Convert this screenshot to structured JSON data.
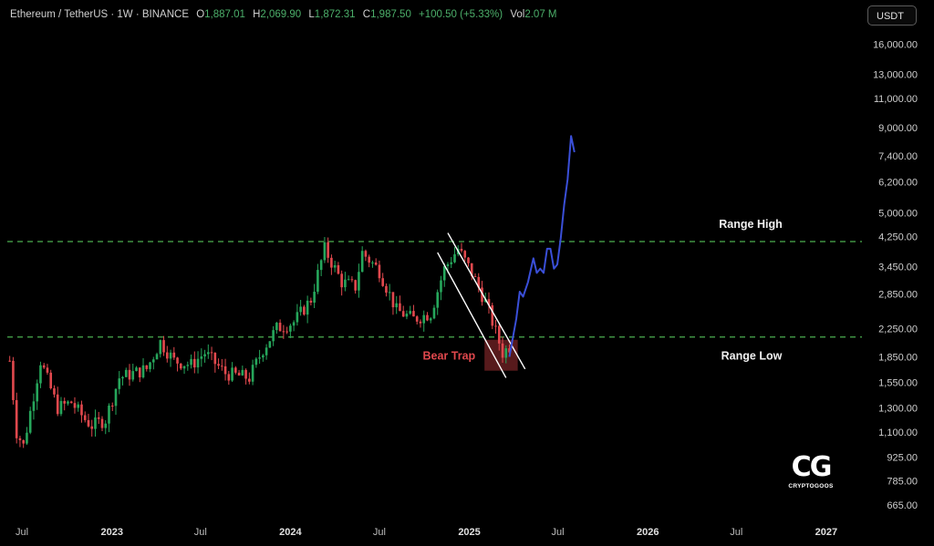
{
  "legend": {
    "symbol": "Ethereum / TetherUS · 1W · BINANCE",
    "o_label": "O",
    "o_value": "1,887.01",
    "h_label": "H",
    "h_value": "2,069.90",
    "l_label": "L",
    "l_value": "1,872.31",
    "c_label": "C",
    "c_value": "1,987.50",
    "change": "+100.50 (+5.33%)",
    "vol_label": "Vol",
    "vol_value": "2.07 M"
  },
  "currency_button": "USDT",
  "logo": {
    "mark": "CG",
    "text": "CRYPTOGOOS"
  },
  "colors": {
    "up": "#26a65b",
    "down": "#e0484d",
    "projection": "#3a4fd8",
    "range_lines": "#4caf50",
    "bear_trap": "#c0393d"
  },
  "chart_data": {
    "type": "candlestick",
    "scale": "log",
    "ylim": [
      620,
      18000
    ],
    "y_ticks": [
      16000,
      13000,
      11000,
      9000,
      7400,
      6200,
      5000,
      4250,
      3450,
      2850,
      2250,
      1850,
      1550,
      1300,
      1100,
      925,
      785,
      665
    ],
    "y_tick_labels": [
      "16,000.00",
      "13,000.00",
      "11,000.00",
      "9,000.00",
      "7,400.00",
      "6,200.00",
      "5,000.00",
      "4,250.00",
      "3,450.00",
      "2,850.00",
      "2,250.00",
      "1,850.00",
      "1,550.00",
      "1,300.00",
      "1,100.00",
      "925.00",
      "785.00",
      "665.00"
    ],
    "x_ticks": [
      {
        "date": "2022-07-01",
        "label": "Jul",
        "bold": false
      },
      {
        "date": "2023-01-01",
        "label": "2023",
        "bold": true
      },
      {
        "date": "2023-07-01",
        "label": "Jul",
        "bold": false
      },
      {
        "date": "2024-01-01",
        "label": "2024",
        "bold": true
      },
      {
        "date": "2024-07-01",
        "label": "Jul",
        "bold": false
      },
      {
        "date": "2025-01-01",
        "label": "2025",
        "bold": true
      },
      {
        "date": "2025-07-01",
        "label": "Jul",
        "bold": false
      },
      {
        "date": "2026-01-01",
        "label": "2026",
        "bold": true
      },
      {
        "date": "2026-07-01",
        "label": "Jul",
        "bold": false
      },
      {
        "date": "2027-01-01",
        "label": "2027",
        "bold": true
      }
    ],
    "xlim": [
      "2022-06-01",
      "2027-03-15"
    ],
    "range_high": {
      "value": 4100,
      "label": "Range High"
    },
    "range_low": {
      "value": 2120,
      "label": "Range Low"
    },
    "bear_trap": {
      "label": "Bear Trap",
      "x0": "2025-02-01",
      "x1": "2025-04-10",
      "y0": 1680,
      "y1": 2080
    },
    "channel": [
      {
        "x0": "2024-11-18",
        "y0": 4350,
        "x1": "2025-04-25",
        "y1": 1700
      },
      {
        "x0": "2024-10-28",
        "y0": 3800,
        "x1": "2025-03-17",
        "y1": 1600
      }
    ],
    "projection": [
      {
        "x": "2025-03-24",
        "y": 1850
      },
      {
        "x": "2025-04-07",
        "y": 2400
      },
      {
        "x": "2025-04-14",
        "y": 2900
      },
      {
        "x": "2025-04-21",
        "y": 2800
      },
      {
        "x": "2025-05-01",
        "y": 3100
      },
      {
        "x": "2025-05-12",
        "y": 3650
      },
      {
        "x": "2025-05-19",
        "y": 3300
      },
      {
        "x": "2025-05-26",
        "y": 3400
      },
      {
        "x": "2025-06-02",
        "y": 3300
      },
      {
        "x": "2025-06-09",
        "y": 3900
      },
      {
        "x": "2025-06-16",
        "y": 3900
      },
      {
        "x": "2025-06-23",
        "y": 3400
      },
      {
        "x": "2025-06-30",
        "y": 3500
      },
      {
        "x": "2025-07-07",
        "y": 4200
      },
      {
        "x": "2025-07-14",
        "y": 5300
      },
      {
        "x": "2025-07-21",
        "y": 6300
      },
      {
        "x": "2025-07-28",
        "y": 8500
      },
      {
        "x": "2025-08-04",
        "y": 7600
      }
    ],
    "price_path": [
      {
        "date": "2022-06-06",
        "price": 1800
      },
      {
        "date": "2022-06-20",
        "price": 1100
      },
      {
        "date": "2022-07-04",
        "price": 1000
      },
      {
        "date": "2022-08-08",
        "price": 1800
      },
      {
        "date": "2022-09-12",
        "price": 1300
      },
      {
        "date": "2022-10-10",
        "price": 1350
      },
      {
        "date": "2022-11-07",
        "price": 1200
      },
      {
        "date": "2022-11-21",
        "price": 1150
      },
      {
        "date": "2022-12-19",
        "price": 1200
      },
      {
        "date": "2023-01-16",
        "price": 1600
      },
      {
        "date": "2023-03-13",
        "price": 1700
      },
      {
        "date": "2023-04-10",
        "price": 2050
      },
      {
        "date": "2023-05-08",
        "price": 1800
      },
      {
        "date": "2023-06-12",
        "price": 1750
      },
      {
        "date": "2023-07-10",
        "price": 1900
      },
      {
        "date": "2023-08-21",
        "price": 1650
      },
      {
        "date": "2023-10-09",
        "price": 1600
      },
      {
        "date": "2023-11-06",
        "price": 1950
      },
      {
        "date": "2023-12-04",
        "price": 2250
      },
      {
        "date": "2024-01-08",
        "price": 2350
      },
      {
        "date": "2024-02-12",
        "price": 2750
      },
      {
        "date": "2024-03-11",
        "price": 3900
      },
      {
        "date": "2024-04-15",
        "price": 3100
      },
      {
        "date": "2024-05-13",
        "price": 3000
      },
      {
        "date": "2024-05-27",
        "price": 3800
      },
      {
        "date": "2024-07-01",
        "price": 3350
      },
      {
        "date": "2024-08-05",
        "price": 2550
      },
      {
        "date": "2024-09-09",
        "price": 2400
      },
      {
        "date": "2024-10-14",
        "price": 2500
      },
      {
        "date": "2024-11-11",
        "price": 3400
      },
      {
        "date": "2024-12-09",
        "price": 3900
      },
      {
        "date": "2025-01-06",
        "price": 3300
      },
      {
        "date": "2025-02-03",
        "price": 2700
      },
      {
        "date": "2025-02-24",
        "price": 2200
      },
      {
        "date": "2025-03-10",
        "price": 1900
      },
      {
        "date": "2025-03-24",
        "price": 1988
      }
    ]
  }
}
